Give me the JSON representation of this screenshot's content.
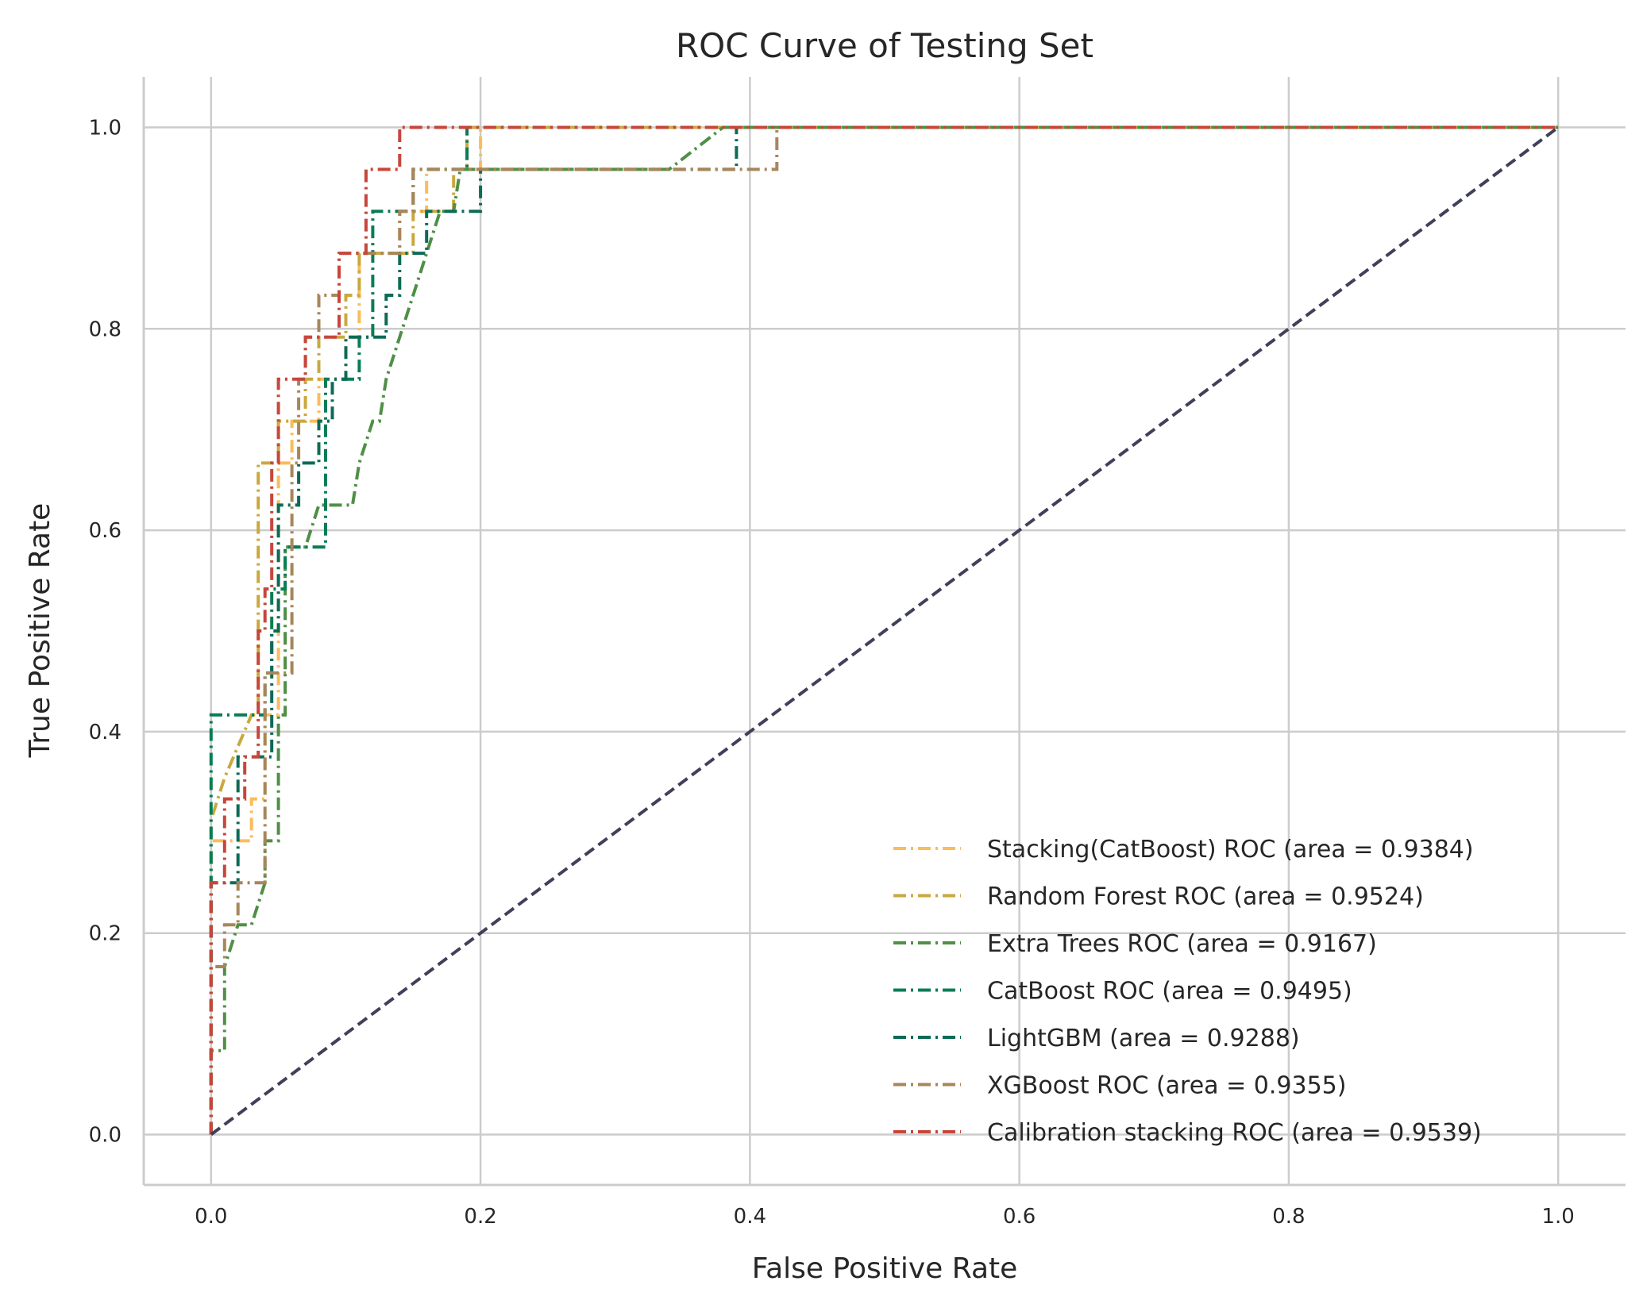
{
  "chart_data": {
    "type": "line",
    "title": "ROC Curve of Testing Set",
    "xlabel": "False Positive Rate",
    "ylabel": "True Positive Rate",
    "xlim": [
      -0.05,
      1.05
    ],
    "ylim": [
      -0.05,
      1.05
    ],
    "xticks": [
      0.0,
      0.2,
      0.4,
      0.6,
      0.8,
      1.0
    ],
    "yticks": [
      0.0,
      0.2,
      0.4,
      0.6,
      0.8,
      1.0
    ],
    "tick_labels_x": [
      "0.0",
      "0.2",
      "0.4",
      "0.6",
      "0.8",
      "1.0"
    ],
    "tick_labels_y": [
      "0.0",
      "0.2",
      "0.4",
      "0.6",
      "0.8",
      "1.0"
    ],
    "grid": true,
    "legend_position": "lower-right",
    "series": [
      {
        "name": "Stacking(CatBoost) ROC (area = 0.9384)",
        "color": "#fbbc5a",
        "dash": "dashdot",
        "x": [
          0.0,
          0.0,
          0.0,
          0.0,
          0.03,
          0.03,
          0.04,
          0.04,
          0.05,
          0.05,
          0.06,
          0.06,
          0.08,
          0.08,
          0.1,
          0.1,
          0.11,
          0.11,
          0.14,
          0.14,
          0.16,
          0.16,
          0.19,
          0.19,
          0.2,
          0.2,
          0.3,
          1.0
        ],
        "y": [
          0.0,
          0.2917,
          0.2917,
          0.2917,
          0.2917,
          0.3333,
          0.3333,
          0.4167,
          0.4167,
          0.6667,
          0.6667,
          0.7083,
          0.7083,
          0.75,
          0.75,
          0.7917,
          0.7917,
          0.875,
          0.875,
          0.9167,
          0.9167,
          0.9583,
          0.9583,
          0.9583,
          0.9583,
          1.0,
          1.0,
          1.0
        ]
      },
      {
        "name": "Random Forest ROC (area = 0.9524)",
        "color": "#c9a93e",
        "dash": "dashdot",
        "x": [
          0.0,
          0.0,
          0.0,
          0.01,
          0.03,
          0.035,
          0.035,
          0.05,
          0.05,
          0.07,
          0.07,
          0.08,
          0.08,
          0.1,
          0.1,
          0.11,
          0.11,
          0.15,
          0.15,
          0.18,
          0.18,
          0.19,
          0.19,
          1.0
        ],
        "y": [
          0.0,
          0.25,
          0.3125,
          0.3542,
          0.4167,
          0.4167,
          0.6667,
          0.6667,
          0.7083,
          0.7083,
          0.75,
          0.75,
          0.7917,
          0.7917,
          0.8333,
          0.8333,
          0.875,
          0.875,
          0.9167,
          0.9167,
          0.9583,
          0.9583,
          1.0,
          1.0
        ]
      },
      {
        "name": "Extra Trees ROC (area = 0.9167)",
        "color": "#4f8f46",
        "dash": "dashdot",
        "x": [
          0.0,
          0.0,
          0.01,
          0.01,
          0.02,
          0.03,
          0.04,
          0.04,
          0.05,
          0.05,
          0.055,
          0.055,
          0.07,
          0.08,
          0.09,
          0.105,
          0.11,
          0.12,
          0.125,
          0.13,
          0.14,
          0.15,
          0.16,
          0.17,
          0.18,
          0.185,
          0.185,
          0.2,
          0.34,
          0.38,
          1.0
        ],
        "y": [
          0.0,
          0.0833,
          0.0833,
          0.1667,
          0.2083,
          0.2083,
          0.25,
          0.2917,
          0.2917,
          0.4167,
          0.4167,
          0.5833,
          0.5833,
          0.625,
          0.625,
          0.625,
          0.6667,
          0.7083,
          0.7083,
          0.75,
          0.7917,
          0.8333,
          0.875,
          0.9167,
          0.9167,
          0.9583,
          0.9583,
          0.9583,
          0.9583,
          1.0,
          1.0
        ]
      },
      {
        "name": "CatBoost ROC (area = 0.9495)",
        "color": "#0a7d55",
        "dash": "dashdot",
        "x": [
          0.0,
          0.0,
          0.0,
          0.02,
          0.02,
          0.025,
          0.025,
          0.04,
          0.04,
          0.045,
          0.045,
          0.055,
          0.055,
          0.085,
          0.085,
          0.11,
          0.11,
          0.12,
          0.12,
          0.15,
          0.15,
          0.19,
          0.19,
          1.0
        ],
        "y": [
          0.0,
          0.2917,
          0.4167,
          0.4167,
          0.4167,
          0.4167,
          0.4167,
          0.4167,
          0.4583,
          0.4583,
          0.5417,
          0.5417,
          0.5833,
          0.5833,
          0.75,
          0.75,
          0.7917,
          0.7917,
          0.9167,
          0.9167,
          0.9583,
          0.9583,
          1.0,
          1.0
        ]
      },
      {
        "name": "LightGBM (area = 0.9288)",
        "color": "#0d6b56",
        "dash": "dashdot",
        "x": [
          0.0,
          0.0,
          0.02,
          0.02,
          0.025,
          0.025,
          0.045,
          0.045,
          0.05,
          0.05,
          0.065,
          0.065,
          0.08,
          0.08,
          0.09,
          0.09,
          0.1,
          0.1,
          0.13,
          0.13,
          0.14,
          0.14,
          0.16,
          0.16,
          0.18,
          0.18,
          0.2,
          0.2,
          0.39,
          0.39,
          1.0
        ],
        "y": [
          0.0,
          0.25,
          0.25,
          0.375,
          0.375,
          0.375,
          0.375,
          0.5,
          0.5,
          0.625,
          0.625,
          0.6667,
          0.6667,
          0.7083,
          0.7083,
          0.75,
          0.75,
          0.7917,
          0.7917,
          0.8333,
          0.8333,
          0.875,
          0.875,
          0.9167,
          0.9167,
          0.9167,
          0.9167,
          0.9583,
          0.9583,
          1.0,
          1.0
        ]
      },
      {
        "name": "XGBoost ROC (area = 0.9355)",
        "color": "#a8865a",
        "dash": "dashdot",
        "x": [
          0.0,
          0.0,
          0.01,
          0.01,
          0.02,
          0.02,
          0.04,
          0.04,
          0.06,
          0.06,
          0.065,
          0.065,
          0.07,
          0.07,
          0.08,
          0.08,
          0.095,
          0.095,
          0.14,
          0.14,
          0.15,
          0.15,
          0.17,
          0.17,
          0.42,
          0.42,
          1.0
        ],
        "y": [
          0.0,
          0.1667,
          0.1667,
          0.2083,
          0.2083,
          0.25,
          0.25,
          0.4583,
          0.4583,
          0.6667,
          0.6667,
          0.75,
          0.75,
          0.7917,
          0.7917,
          0.8333,
          0.8333,
          0.875,
          0.875,
          0.9167,
          0.9167,
          0.9583,
          0.9583,
          0.9583,
          0.9583,
          1.0,
          1.0
        ]
      },
      {
        "name": "Calibration stacking ROC (area = 0.9539)",
        "color": "#c7463b",
        "dash": "dashdot",
        "x": [
          0.0,
          0.0,
          0.01,
          0.01,
          0.025,
          0.025,
          0.035,
          0.035,
          0.04,
          0.04,
          0.045,
          0.045,
          0.05,
          0.05,
          0.07,
          0.07,
          0.095,
          0.095,
          0.115,
          0.115,
          0.14,
          0.14,
          0.14,
          1.0
        ],
        "y": [
          0.0,
          0.25,
          0.25,
          0.3333,
          0.3333,
          0.375,
          0.375,
          0.5,
          0.5,
          0.5417,
          0.5417,
          0.6667,
          0.6667,
          0.75,
          0.75,
          0.7917,
          0.7917,
          0.875,
          0.875,
          0.9583,
          0.9583,
          1.0,
          1.0,
          1.0
        ]
      },
      {
        "name": "",
        "color": "#40405a",
        "dash": "dashed",
        "x": [
          0.0,
          1.0
        ],
        "y": [
          0.0,
          1.0
        ]
      }
    ]
  }
}
